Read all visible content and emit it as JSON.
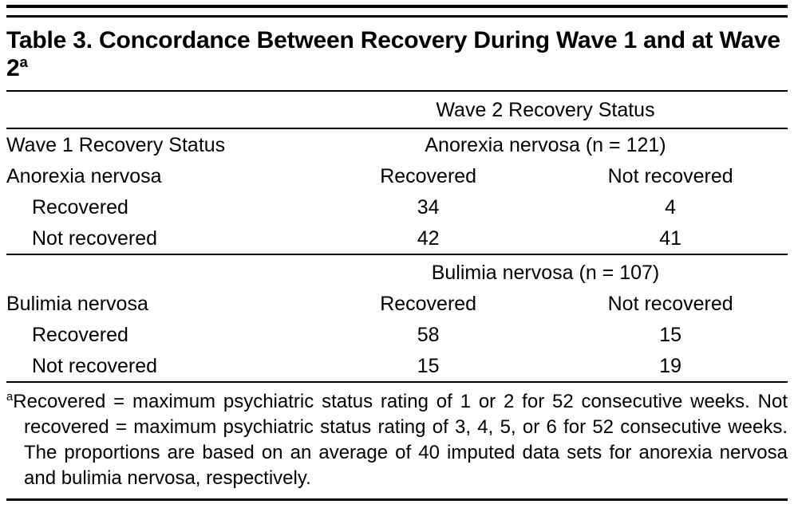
{
  "page": {
    "background": "#ffffff",
    "text_color": "#000000"
  },
  "table": {
    "title": "Table 3. Concordance Between Recovery During Wave 1 and at Wave 2",
    "title_sup": "a",
    "wave2_header": "Wave 2 Recovery Status",
    "wave1_header": "Wave 1 Recovery Status",
    "sections": [
      {
        "group_header": "Anorexia nervosa (n = 121)",
        "row_header": "Anorexia nervosa",
        "col_recovered": "Recovered",
        "col_not_recovered": "Not recovered",
        "rows": [
          {
            "label": "Recovered",
            "recovered": "34",
            "not_recovered": "4"
          },
          {
            "label": "Not recovered",
            "recovered": "42",
            "not_recovered": "41"
          }
        ]
      },
      {
        "group_header": "Bulimia nervosa (n = 107)",
        "row_header": "Bulimia nervosa",
        "col_recovered": "Recovered",
        "col_not_recovered": "Not recovered",
        "rows": [
          {
            "label": "Recovered",
            "recovered": "58",
            "not_recovered": "15"
          },
          {
            "label": "Not recovered",
            "recovered": "15",
            "not_recovered": "19"
          }
        ]
      }
    ],
    "footnote_sup": "a",
    "footnote": "Recovered = maximum psychiatric status rating of 1 or 2 for 52 consecutive weeks. Not recovered = maximum psychiatric status rating of 3, 4, 5, or 6 for 52 consecutive weeks. The proportions are based on an average of 40 imputed data sets for anorexia nervosa and bulimia nervosa, respectively."
  }
}
